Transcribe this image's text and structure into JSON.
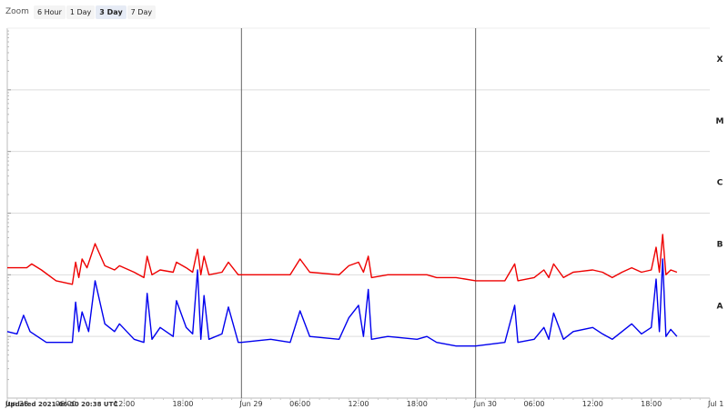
{
  "toolbar": {
    "zoom_label": "Zoom",
    "buttons": [
      "6 Hour",
      "1 Day",
      "3 Day",
      "7 Day"
    ],
    "active": "3 Day"
  },
  "footer": {
    "updated": "Updated 2021-06-30 20:38 UTC"
  },
  "colors": {
    "series_a": "#0000ee",
    "series_b": "#ee0000",
    "grid": "#dddddd",
    "day_line": "#666666"
  },
  "chart_data": {
    "type": "line",
    "title": "",
    "xlabel": "",
    "ylabel": "",
    "y_scale": "log",
    "ylim": [
      1e-09,
      0.001
    ],
    "flux_classes": [
      {
        "label": "A",
        "value": 1e-08
      },
      {
        "label": "B",
        "value": 1e-07
      },
      {
        "label": "C",
        "value": 1e-06
      },
      {
        "label": "M",
        "value": 1e-05
      },
      {
        "label": "X",
        "value": 0.0001
      }
    ],
    "xlim": [
      "2021-06-28 00:00",
      "2021-07-01 00:00"
    ],
    "x_ticks": [
      {
        "t": "2021-06-28 00:00",
        "label": "Jun 28",
        "major": true
      },
      {
        "t": "2021-06-28 06:00",
        "label": "06:00",
        "major": false
      },
      {
        "t": "2021-06-28 12:00",
        "label": "12:00",
        "major": false
      },
      {
        "t": "2021-06-28 18:00",
        "label": "18:00",
        "major": false
      },
      {
        "t": "2021-06-29 00:00",
        "label": "Jun 29",
        "major": true
      },
      {
        "t": "2021-06-29 06:00",
        "label": "06:00",
        "major": false
      },
      {
        "t": "2021-06-29 12:00",
        "label": "12:00",
        "major": false
      },
      {
        "t": "2021-06-29 18:00",
        "label": "18:00",
        "major": false
      },
      {
        "t": "2021-06-30 00:00",
        "label": "Jun 30",
        "major": true
      },
      {
        "t": "2021-06-30 06:00",
        "label": "06:00",
        "major": false
      },
      {
        "t": "2021-06-30 12:00",
        "label": "12:00",
        "major": false
      },
      {
        "t": "2021-06-30 18:00",
        "label": "18:00",
        "major": false
      },
      {
        "t": "2021-07-01 00:00",
        "label": "Jul 1",
        "major": true
      }
    ],
    "series": [
      {
        "color": "#ee0000",
        "points": [
          [
            "2021-06-28 00:00",
            1.3e-07
          ],
          [
            "2021-06-28 02:00",
            1.3e-07
          ],
          [
            "2021-06-28 02:30",
            1.5e-07
          ],
          [
            "2021-06-28 03:30",
            1.2e-07
          ],
          [
            "2021-06-28 05:00",
            8e-08
          ],
          [
            "2021-06-28 06:40",
            7e-08
          ],
          [
            "2021-06-28 07:00",
            1.6e-07
          ],
          [
            "2021-06-28 07:20",
            9e-08
          ],
          [
            "2021-06-28 07:40",
            1.8e-07
          ],
          [
            "2021-06-28 08:10",
            1.3e-07
          ],
          [
            "2021-06-28 09:00",
            3.2e-07
          ],
          [
            "2021-06-28 10:00",
            1.4e-07
          ],
          [
            "2021-06-28 11:00",
            1.2e-07
          ],
          [
            "2021-06-28 11:30",
            1.4e-07
          ],
          [
            "2021-06-28 13:00",
            1.1e-07
          ],
          [
            "2021-06-28 14:00",
            9e-08
          ],
          [
            "2021-06-28 14:20",
            2e-07
          ],
          [
            "2021-06-28 14:50",
            1e-07
          ],
          [
            "2021-06-28 15:40",
            1.2e-07
          ],
          [
            "2021-06-28 17:00",
            1.1e-07
          ],
          [
            "2021-06-28 17:20",
            1.6e-07
          ],
          [
            "2021-06-28 18:20",
            1.3e-07
          ],
          [
            "2021-06-28 19:00",
            1.1e-07
          ],
          [
            "2021-06-28 19:30",
            2.6e-07
          ],
          [
            "2021-06-28 19:50",
            1e-07
          ],
          [
            "2021-06-28 20:10",
            2e-07
          ],
          [
            "2021-06-28 20:40",
            1e-07
          ],
          [
            "2021-06-28 22:00",
            1.1e-07
          ],
          [
            "2021-06-28 22:40",
            1.6e-07
          ],
          [
            "2021-06-28 23:40",
            1e-07
          ],
          [
            "2021-06-29 00:00",
            1e-07
          ],
          [
            "2021-06-29 03:00",
            1e-07
          ],
          [
            "2021-06-29 05:00",
            1e-07
          ],
          [
            "2021-06-29 06:00",
            1.8e-07
          ],
          [
            "2021-06-29 07:00",
            1.1e-07
          ],
          [
            "2021-06-29 10:00",
            1e-07
          ],
          [
            "2021-06-29 11:00",
            1.4e-07
          ],
          [
            "2021-06-29 12:00",
            1.6e-07
          ],
          [
            "2021-06-29 12:30",
            1.1e-07
          ],
          [
            "2021-06-29 13:00",
            2e-07
          ],
          [
            "2021-06-29 13:20",
            9e-08
          ],
          [
            "2021-06-29 15:00",
            1e-07
          ],
          [
            "2021-06-29 18:00",
            1e-07
          ],
          [
            "2021-06-29 19:00",
            1e-07
          ],
          [
            "2021-06-29 20:00",
            9e-08
          ],
          [
            "2021-06-29 22:00",
            9e-08
          ],
          [
            "2021-06-30 00:00",
            8e-08
          ],
          [
            "2021-06-30 03:00",
            8e-08
          ],
          [
            "2021-06-30 04:00",
            1.5e-07
          ],
          [
            "2021-06-30 04:20",
            8e-08
          ],
          [
            "2021-06-30 06:00",
            9e-08
          ],
          [
            "2021-06-30 07:00",
            1.2e-07
          ],
          [
            "2021-06-30 07:30",
            9e-08
          ],
          [
            "2021-06-30 08:00",
            1.5e-07
          ],
          [
            "2021-06-30 09:00",
            9e-08
          ],
          [
            "2021-06-30 10:00",
            1.1e-07
          ],
          [
            "2021-06-30 12:00",
            1.2e-07
          ],
          [
            "2021-06-30 13:00",
            1.1e-07
          ],
          [
            "2021-06-30 14:00",
            9e-08
          ],
          [
            "2021-06-30 15:00",
            1.1e-07
          ],
          [
            "2021-06-30 16:00",
            1.3e-07
          ],
          [
            "2021-06-30 17:00",
            1.1e-07
          ],
          [
            "2021-06-30 18:00",
            1.2e-07
          ],
          [
            "2021-06-30 18:30",
            2.8e-07
          ],
          [
            "2021-06-30 18:50",
            1.1e-07
          ],
          [
            "2021-06-30 19:10",
            4.5e-07
          ],
          [
            "2021-06-30 19:30",
            1e-07
          ],
          [
            "2021-06-30 20:00",
            1.2e-07
          ],
          [
            "2021-06-30 20:38",
            1.1e-07
          ]
        ]
      },
      {
        "color": "#0000ee",
        "points": [
          [
            "2021-06-28 00:00",
            1.2e-08
          ],
          [
            "2021-06-28 01:00",
            1.1e-08
          ],
          [
            "2021-06-28 01:40",
            2.2e-08
          ],
          [
            "2021-06-28 02:20",
            1.2e-08
          ],
          [
            "2021-06-28 04:00",
            8e-09
          ],
          [
            "2021-06-28 06:40",
            8e-09
          ],
          [
            "2021-06-28 07:00",
            3.6e-08
          ],
          [
            "2021-06-28 07:20",
            1.2e-08
          ],
          [
            "2021-06-28 07:40",
            2.5e-08
          ],
          [
            "2021-06-28 08:20",
            1.2e-08
          ],
          [
            "2021-06-28 09:00",
            8e-08
          ],
          [
            "2021-06-28 10:00",
            1.6e-08
          ],
          [
            "2021-06-28 11:00",
            1.2e-08
          ],
          [
            "2021-06-28 11:30",
            1.6e-08
          ],
          [
            "2021-06-28 13:00",
            9e-09
          ],
          [
            "2021-06-28 14:00",
            8e-09
          ],
          [
            "2021-06-28 14:20",
            5e-08
          ],
          [
            "2021-06-28 14:50",
            9e-09
          ],
          [
            "2021-06-28 15:40",
            1.4e-08
          ],
          [
            "2021-06-28 17:00",
            1e-08
          ],
          [
            "2021-06-28 17:20",
            3.8e-08
          ],
          [
            "2021-06-28 18:20",
            1.4e-08
          ],
          [
            "2021-06-28 19:00",
            1.1e-08
          ],
          [
            "2021-06-28 19:30",
            1.2e-07
          ],
          [
            "2021-06-28 19:50",
            9e-09
          ],
          [
            "2021-06-28 20:10",
            4.6e-08
          ],
          [
            "2021-06-28 20:40",
            9e-09
          ],
          [
            "2021-06-28 22:00",
            1.1e-08
          ],
          [
            "2021-06-28 22:40",
            3e-08
          ],
          [
            "2021-06-28 23:40",
            8e-09
          ],
          [
            "2021-06-29 00:00",
            8e-09
          ],
          [
            "2021-06-29 03:00",
            9e-09
          ],
          [
            "2021-06-29 05:00",
            8e-09
          ],
          [
            "2021-06-29 06:00",
            2.6e-08
          ],
          [
            "2021-06-29 07:00",
            1e-08
          ],
          [
            "2021-06-29 10:00",
            9e-09
          ],
          [
            "2021-06-29 11:00",
            2e-08
          ],
          [
            "2021-06-29 12:00",
            3.2e-08
          ],
          [
            "2021-06-29 12:30",
            1e-08
          ],
          [
            "2021-06-29 13:00",
            5.8e-08
          ],
          [
            "2021-06-29 13:20",
            9e-09
          ],
          [
            "2021-06-29 15:00",
            1e-08
          ],
          [
            "2021-06-29 18:00",
            9e-09
          ],
          [
            "2021-06-29 19:00",
            1e-08
          ],
          [
            "2021-06-29 20:00",
            8e-09
          ],
          [
            "2021-06-29 22:00",
            7e-09
          ],
          [
            "2021-06-30 00:00",
            7e-09
          ],
          [
            "2021-06-30 03:00",
            8e-09
          ],
          [
            "2021-06-30 04:00",
            3.2e-08
          ],
          [
            "2021-06-30 04:20",
            8e-09
          ],
          [
            "2021-06-30 06:00",
            9e-09
          ],
          [
            "2021-06-30 07:00",
            1.4e-08
          ],
          [
            "2021-06-30 07:30",
            9e-09
          ],
          [
            "2021-06-30 08:00",
            2.4e-08
          ],
          [
            "2021-06-30 09:00",
            9e-09
          ],
          [
            "2021-06-30 10:00",
            1.2e-08
          ],
          [
            "2021-06-30 12:00",
            1.4e-08
          ],
          [
            "2021-06-30 13:00",
            1.1e-08
          ],
          [
            "2021-06-30 14:00",
            9e-09
          ],
          [
            "2021-06-30 15:00",
            1.2e-08
          ],
          [
            "2021-06-30 16:00",
            1.6e-08
          ],
          [
            "2021-06-30 17:00",
            1.1e-08
          ],
          [
            "2021-06-30 18:00",
            1.4e-08
          ],
          [
            "2021-06-30 18:30",
            8.5e-08
          ],
          [
            "2021-06-30 18:50",
            1.2e-08
          ],
          [
            "2021-06-30 19:10",
            1.8e-07
          ],
          [
            "2021-06-30 19:30",
            1e-08
          ],
          [
            "2021-06-30 20:00",
            1.3e-08
          ],
          [
            "2021-06-30 20:38",
            1e-08
          ]
        ]
      }
    ]
  }
}
